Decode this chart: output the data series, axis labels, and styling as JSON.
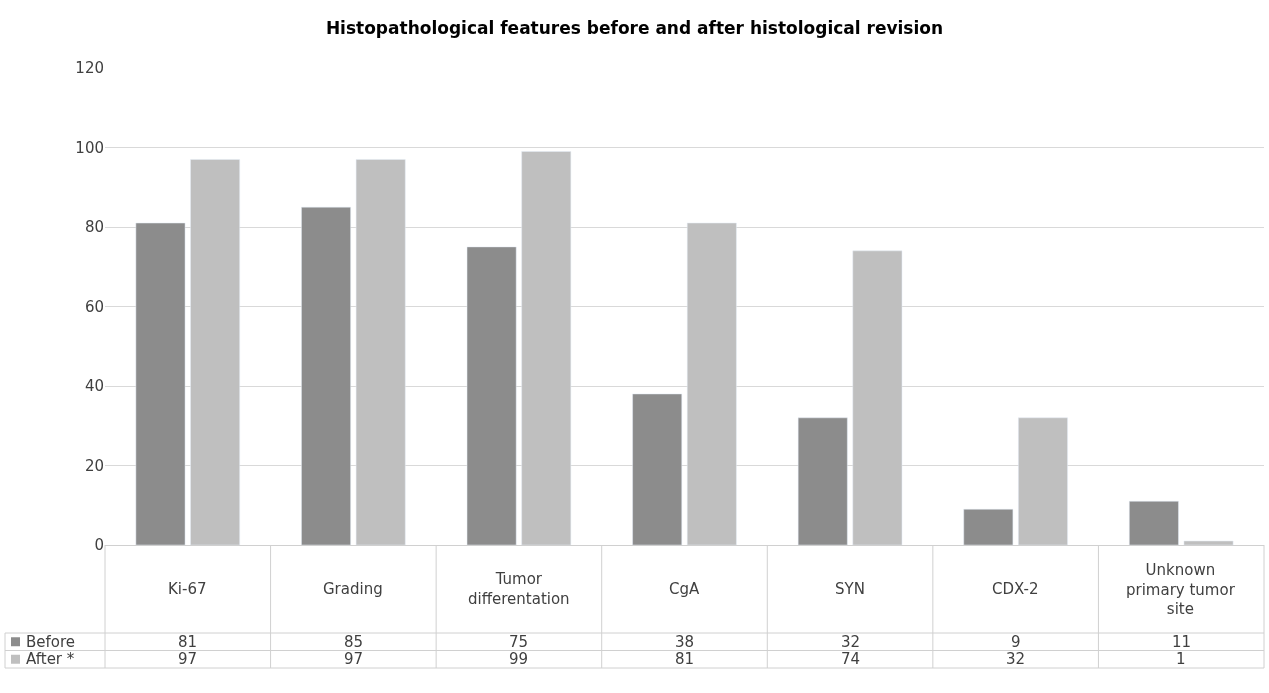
{
  "chart_data": {
    "type": "bar",
    "title": "Histopathological features before and after histological revision",
    "categories": [
      "Ki-67",
      "Grading",
      "Tumor differentation",
      "CgA",
      "SYN",
      "CDX-2",
      "Unknown primary tumor site"
    ],
    "series": [
      {
        "name": "Before",
        "color": "#8c8c8c",
        "values": [
          81,
          85,
          75,
          38,
          32,
          9,
          11
        ]
      },
      {
        "name": "After *",
        "color": "#bfbfbf",
        "values": [
          97,
          97,
          99,
          81,
          74,
          32,
          1
        ]
      }
    ],
    "ylim": [
      0,
      120
    ],
    "yticks": [
      0,
      20,
      40,
      60,
      80,
      100,
      120
    ],
    "grid": "y",
    "legend": "bottom left",
    "data_labels": true
  }
}
